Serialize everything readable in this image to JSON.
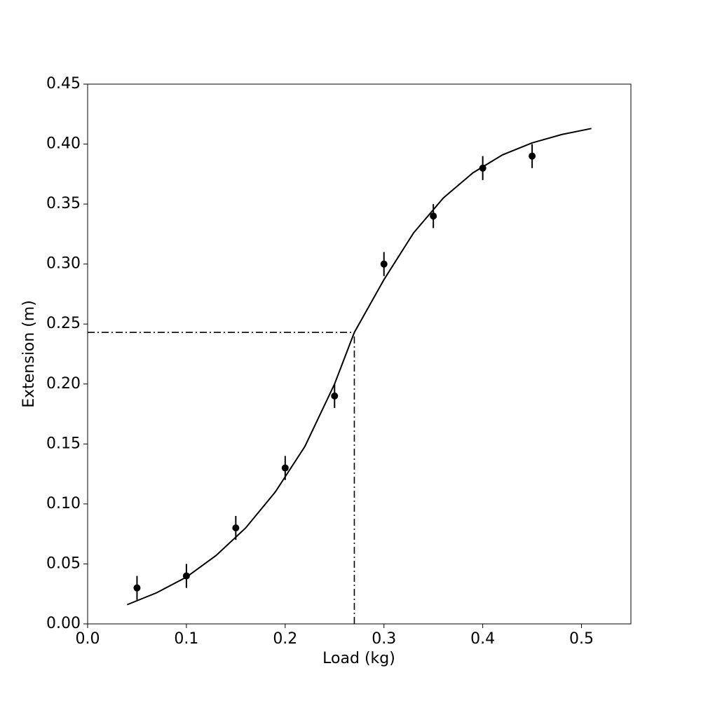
{
  "chart_data": {
    "type": "errorbar",
    "xlabel": "Load (kg)",
    "ylabel": "Extension (m)",
    "x": [
      0.05,
      0.1,
      0.15,
      0.2,
      0.25,
      0.3,
      0.35,
      0.4,
      0.45
    ],
    "values": [
      0.03,
      0.04,
      0.08,
      0.13,
      0.19,
      0.3,
      0.34,
      0.38,
      0.39
    ],
    "errors": [
      0.01,
      0.01,
      0.01,
      0.01,
      0.01,
      0.01,
      0.01,
      0.01,
      0.01
    ],
    "color": "#000000",
    "fit": {
      "type": "line",
      "color": "#000000",
      "x": [
        0.04,
        0.07,
        0.1,
        0.13,
        0.16,
        0.19,
        0.22,
        0.25,
        0.27,
        0.3,
        0.33,
        0.36,
        0.39,
        0.42,
        0.45,
        0.48,
        0.51
      ],
      "values": [
        0.016,
        0.026,
        0.039,
        0.057,
        0.08,
        0.11,
        0.148,
        0.2,
        0.243,
        0.287,
        0.326,
        0.355,
        0.376,
        0.391,
        0.401,
        0.408,
        0.413
      ]
    },
    "reference": {
      "x": 0.27,
      "y": 0.243,
      "style": "dashdot",
      "color": "#000000"
    },
    "xlim": [
      0,
      0.55
    ],
    "ylim": [
      0,
      0.45
    ],
    "xticks": [
      {
        "value": 0,
        "label": "0.0"
      },
      0.1,
      0.2,
      0.3,
      0.4,
      0.5
    ],
    "yticks": [
      {
        "value": 0,
        "label": "0.00"
      },
      0.05,
      {
        "value": 0.1,
        "label": "0.10"
      },
      0.15,
      {
        "value": 0.2,
        "label": "0.20"
      },
      0.25,
      {
        "value": 0.3,
        "label": "0.30"
      },
      0.35,
      {
        "value": 0.4,
        "label": "0.40"
      },
      0.45
    ]
  }
}
